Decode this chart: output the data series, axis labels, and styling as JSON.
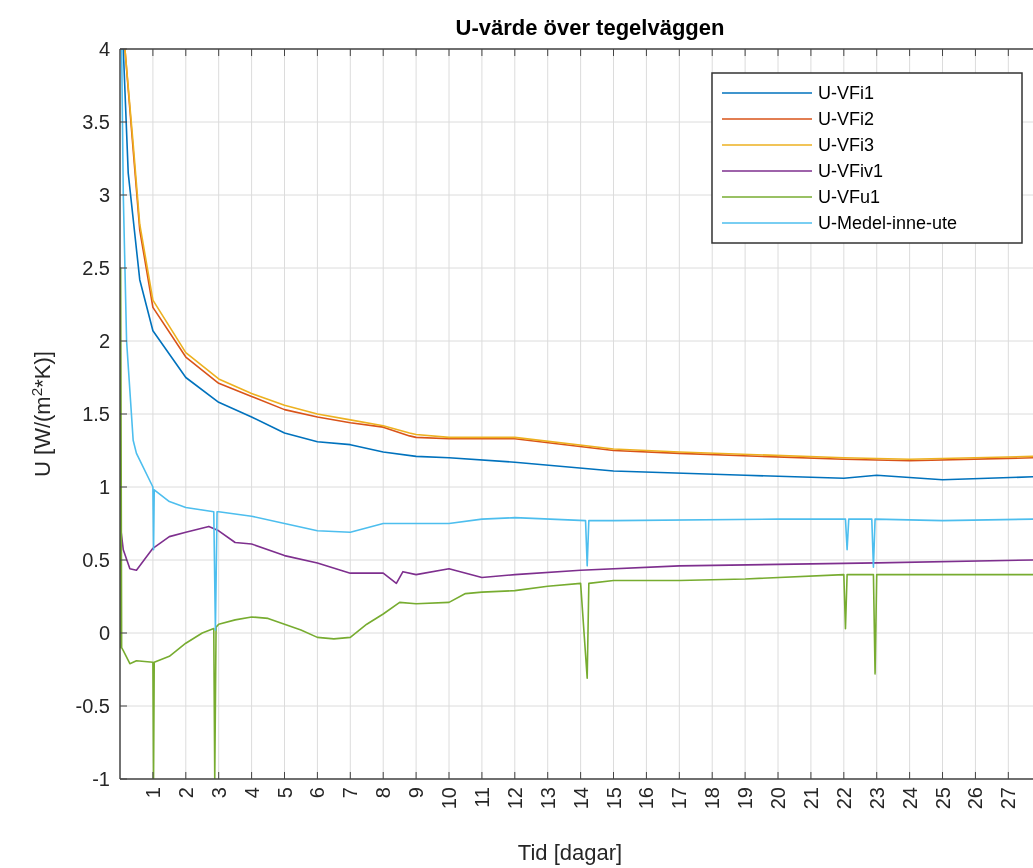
{
  "chart_data": {
    "type": "line",
    "title": "U-värde över tegelväggen",
    "xlabel": "Tid [dagar]",
    "ylabel": "U [W/(m$^{2}$*K)]",
    "xlim": [
      0,
      27.75
    ],
    "xticks": [
      1,
      2,
      3,
      4,
      5,
      6,
      7,
      8,
      9,
      10,
      11,
      12,
      13,
      14,
      15,
      16,
      17,
      18,
      19,
      20,
      21,
      22,
      23,
      24,
      25,
      26,
      27
    ],
    "ylim": [
      -1,
      4
    ],
    "yticks": [
      -1,
      -0.5,
      0,
      0.5,
      1,
      1.5,
      2,
      2.5,
      3,
      3.5,
      4
    ],
    "grid": true,
    "legend": "top right",
    "line_style": "solid",
    "marker": "none",
    "series": [
      {
        "name": "U-VFi1",
        "color": "#0072bd",
        "x": [
          0.1,
          0.25,
          0.6,
          1,
          2,
          3,
          4,
          5,
          6,
          7,
          8,
          9,
          10,
          12,
          15,
          19,
          22,
          23,
          25,
          27.75
        ],
        "values": [
          4,
          3.15,
          2.42,
          2.07,
          1.75,
          1.58,
          1.48,
          1.37,
          1.31,
          1.29,
          1.24,
          1.21,
          1.2,
          1.17,
          1.11,
          1.08,
          1.06,
          1.08,
          1.05,
          1.07
        ]
      },
      {
        "name": "U-VFi2",
        "color": "#d95319",
        "x": [
          0.15,
          0.4,
          0.6,
          1,
          2,
          3,
          4,
          5,
          6,
          7,
          8,
          8.8,
          9,
          10,
          12,
          15,
          17,
          22,
          24,
          27.75
        ],
        "values": [
          4,
          3.31,
          2.76,
          2.23,
          1.89,
          1.71,
          1.62,
          1.53,
          1.48,
          1.44,
          1.41,
          1.35,
          1.34,
          1.33,
          1.33,
          1.25,
          1.23,
          1.19,
          1.18,
          1.2
        ]
      },
      {
        "name": "U-VFi3",
        "color": "#edb120",
        "x": [
          0.15,
          0.4,
          0.6,
          1,
          2,
          3,
          4,
          5,
          6,
          7,
          8,
          8.8,
          9,
          10,
          12,
          15,
          17,
          22,
          24,
          27.75
        ],
        "values": [
          4,
          3.35,
          2.8,
          2.28,
          1.92,
          1.74,
          1.64,
          1.56,
          1.5,
          1.46,
          1.42,
          1.37,
          1.36,
          1.34,
          1.34,
          1.26,
          1.24,
          1.2,
          1.19,
          1.21
        ]
      },
      {
        "name": "U-VFiv1",
        "color": "#7e2f8e",
        "x": [
          0.02,
          0.1,
          0.3,
          0.5,
          0.8,
          1,
          1.5,
          2,
          2.7,
          3,
          3.5,
          4,
          5,
          6,
          7,
          8,
          8.4,
          8.6,
          9,
          10,
          11,
          12,
          14,
          17,
          20,
          23,
          27.75
        ],
        "values": [
          0.72,
          0.57,
          0.44,
          0.43,
          0.52,
          0.58,
          0.66,
          0.69,
          0.73,
          0.7,
          0.62,
          0.61,
          0.53,
          0.48,
          0.41,
          0.41,
          0.34,
          0.42,
          0.4,
          0.44,
          0.38,
          0.4,
          0.43,
          0.46,
          0.47,
          0.48,
          0.5
        ]
      },
      {
        "name": "U-VFu1",
        "color": "#77ac30",
        "x": [
          0.01,
          0.02,
          0.05,
          0.1,
          0.3,
          0.5,
          1,
          1.02,
          1.04,
          1.5,
          2,
          2.5,
          2.85,
          2.88,
          2.92,
          3,
          3.5,
          4,
          4.5,
          5,
          5.5,
          6,
          6.5,
          7,
          7.5,
          8,
          8.5,
          9,
          10,
          10.5,
          11,
          12,
          13,
          14,
          14.2,
          14.25,
          15,
          17,
          19,
          22,
          22.05,
          22.1,
          22.9,
          22.95,
          23,
          25,
          27.75
        ],
        "values": [
          -0.1,
          2.5,
          -0.1,
          -0.12,
          -0.21,
          -0.19,
          -0.2,
          -1,
          -0.2,
          -0.16,
          -0.07,
          0,
          0.03,
          -1,
          0.04,
          0.06,
          0.09,
          0.11,
          0.1,
          0.06,
          0.02,
          -0.03,
          -0.04,
          -0.03,
          0.06,
          0.13,
          0.21,
          0.2,
          0.21,
          0.27,
          0.28,
          0.29,
          0.32,
          0.34,
          -0.31,
          0.34,
          0.36,
          0.36,
          0.37,
          0.4,
          0.03,
          0.4,
          0.4,
          -0.28,
          0.4,
          0.4,
          0.4
        ]
      },
      {
        "name": "U-Medel-inne-ute",
        "color": "#4dbeee",
        "x": [
          0.05,
          0.1,
          0.2,
          0.4,
          0.5,
          1,
          1.02,
          1.04,
          1.5,
          2,
          2.85,
          2.9,
          2.95,
          3,
          4,
          5,
          6,
          7,
          8,
          9,
          10,
          11,
          12,
          14.15,
          14.2,
          14.25,
          15,
          20,
          22.05,
          22.1,
          22.15,
          22.85,
          22.9,
          22.95,
          25,
          27.75
        ],
        "values": [
          4,
          3,
          2,
          1.32,
          1.23,
          1,
          0.57,
          0.98,
          0.9,
          0.86,
          0.83,
          0.02,
          0.83,
          0.83,
          0.8,
          0.75,
          0.7,
          0.69,
          0.75,
          0.75,
          0.75,
          0.78,
          0.79,
          0.77,
          0.46,
          0.77,
          0.77,
          0.78,
          0.78,
          0.57,
          0.78,
          0.78,
          0.45,
          0.78,
          0.77,
          0.78
        ]
      }
    ]
  }
}
